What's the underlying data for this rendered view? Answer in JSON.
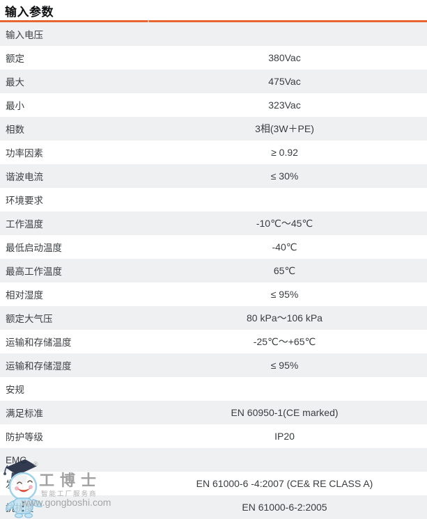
{
  "page": {
    "title": "输入参数"
  },
  "theme": {
    "accent_orange": "#e7662f",
    "row_stripe_color": "#eef0f1",
    "text_color": "#3c4043"
  },
  "table": {
    "rows": [
      {
        "type": "section",
        "label": "输入电压",
        "value": ""
      },
      {
        "type": "item",
        "label": "额定",
        "value": "380Vac"
      },
      {
        "type": "item",
        "label": "最大",
        "value": "475Vac"
      },
      {
        "type": "item",
        "label": "最小",
        "value": "323Vac"
      },
      {
        "type": "item",
        "label": "相数",
        "value": "3相(3W＋PE)"
      },
      {
        "type": "item",
        "label": "功率因素",
        "value": "≥ 0.92"
      },
      {
        "type": "item",
        "label": "谐波电流",
        "value": "≤ 30%"
      },
      {
        "type": "section",
        "label": "环境要求",
        "value": ""
      },
      {
        "type": "item",
        "label": "工作温度",
        "value": "-10℃～45℃"
      },
      {
        "type": "item",
        "label": "最低启动温度",
        "value": "-40℃"
      },
      {
        "type": "item",
        "label": "最高工作温度",
        "value": "65℃"
      },
      {
        "type": "item",
        "label": "相对湿度",
        "value": "≤ 95%"
      },
      {
        "type": "item",
        "label": "额定大气压",
        "value": "80 kPa～106 kPa"
      },
      {
        "type": "item",
        "label": "运输和存储温度",
        "value": "-25℃～+65℃"
      },
      {
        "type": "item",
        "label": "运输和存储湿度",
        "value": "≤ 95%"
      },
      {
        "type": "section",
        "label": "安规",
        "value": ""
      },
      {
        "type": "item",
        "label": "满足标准",
        "value": "EN 60950-1(CE marked)"
      },
      {
        "type": "item",
        "label": "防护等级",
        "value": "IP20"
      },
      {
        "type": "section",
        "label": "EMC",
        "value": ""
      },
      {
        "type": "item",
        "label": "发射",
        "value": "EN 61000-6 -4:2007 (CE& RE CLASS A)"
      },
      {
        "type": "item",
        "label": "抗扰度",
        "value": "EN 61000-6-2:2005"
      }
    ]
  },
  "watermark": {
    "registered_mark": "®",
    "brand": "工博士",
    "tagline": "智能工厂服务商",
    "url": "www.gongboshi.com"
  }
}
